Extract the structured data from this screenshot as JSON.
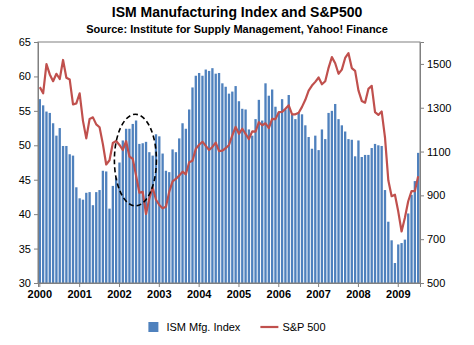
{
  "chart_data": {
    "type": "bar",
    "title": "ISM Manufacturing Index and S&P500",
    "subtitle": "Source: Institute for Supply Management, Yahoo! Finance",
    "categories": [
      "2000",
      null,
      null,
      null,
      null,
      null,
      null,
      null,
      null,
      null,
      null,
      null,
      "2001",
      null,
      null,
      null,
      null,
      null,
      null,
      null,
      null,
      null,
      null,
      null,
      "2002",
      null,
      null,
      null,
      null,
      null,
      null,
      null,
      null,
      null,
      null,
      null,
      "2003",
      null,
      null,
      null,
      null,
      null,
      null,
      null,
      null,
      null,
      null,
      null,
      "2004",
      null,
      null,
      null,
      null,
      null,
      null,
      null,
      null,
      null,
      null,
      null,
      "2005",
      null,
      null,
      null,
      null,
      null,
      null,
      null,
      null,
      null,
      null,
      null,
      "2006",
      null,
      null,
      null,
      null,
      null,
      null,
      null,
      null,
      null,
      null,
      null,
      "2007",
      null,
      null,
      null,
      null,
      null,
      null,
      null,
      null,
      null,
      null,
      null,
      "2008",
      null,
      null,
      null,
      null,
      null,
      null,
      null,
      null,
      null,
      null,
      null,
      "2009",
      null,
      null,
      null,
      null,
      null,
      null
    ],
    "series": [
      {
        "name": "ISM Mfg. Index",
        "type": "bar",
        "color": "#4f81bd",
        "values": [
          56.7,
          55.8,
          54.9,
          54.7,
          53.2,
          51.4,
          52.5,
          49.9,
          49.9,
          48.7,
          48.5,
          43.9,
          42.3,
          42.1,
          43.1,
          43.2,
          41.3,
          43.2,
          43.5,
          46.3,
          46.2,
          40.8,
          44.1,
          45.3,
          47.5,
          50.7,
          52.4,
          52.4,
          53.1,
          53.6,
          50.2,
          50.3,
          50.5,
          49.0,
          48.5,
          51.6,
          51.3,
          48.8,
          46.3,
          46.1,
          49.4,
          49.0,
          51.0,
          53.2,
          52.4,
          55.2,
          58.4,
          60.1,
          60.5,
          60.1,
          61.0,
          60.8,
          61.2,
          60.4,
          60.5,
          59.0,
          58.5,
          57.5,
          57.8,
          58.6,
          56.4,
          55.3,
          55.2,
          52.3,
          51.4,
          53.8,
          56.6,
          53.6,
          59.0,
          57.2,
          58.1,
          55.6,
          54.8,
          56.7,
          55.2,
          57.3,
          54.4,
          53.8,
          54.7,
          54.5,
          52.9,
          51.2,
          49.5,
          51.4,
          49.3,
          52.3,
          50.9,
          54.7,
          55.0,
          56.0,
          53.8,
          52.9,
          52.0,
          50.9,
          50.8,
          48.4,
          50.7,
          48.3,
          48.6,
          48.6,
          49.6,
          50.2,
          50.0,
          49.9,
          43.5,
          38.9,
          36.2,
          32.9,
          35.6,
          35.8,
          36.3,
          40.1,
          42.8,
          44.8,
          48.9
        ]
      },
      {
        "name": "S&P 500",
        "type": "line",
        "color": "#c0504d",
        "axis": "y2",
        "values": [
          1394,
          1366,
          1499,
          1452,
          1421,
          1455,
          1431,
          1518,
          1437,
          1429,
          1315,
          1320,
          1366,
          1240,
          1160,
          1249,
          1256,
          1224,
          1211,
          1134,
          1041,
          1060,
          1139,
          1148,
          1130,
          1107,
          1147,
          1077,
          1067,
          990,
          912,
          916,
          815,
          886,
          936,
          880,
          856,
          841,
          848,
          917,
          964,
          975,
          990,
          1008,
          996,
          1051,
          1058,
          1112,
          1131,
          1145,
          1126,
          1107,
          1121,
          1141,
          1102,
          1104,
          1115,
          1130,
          1174,
          1212,
          1181,
          1204,
          1181,
          1157,
          1192,
          1191,
          1234,
          1220,
          1229,
          1207,
          1249,
          1248,
          1280,
          1281,
          1295,
          1311,
          1270,
          1270,
          1277,
          1304,
          1336,
          1378,
          1401,
          1418,
          1438,
          1407,
          1421,
          1482,
          1531,
          1503,
          1455,
          1474,
          1527,
          1549,
          1481,
          1468,
          1379,
          1331,
          1323,
          1386,
          1400,
          1280,
          1267,
          1283,
          1165,
          969,
          896,
          903,
          826,
          735,
          798,
          873,
          919,
          919,
          987
        ]
      }
    ],
    "ylim": [
      30,
      65
    ],
    "yticks": [
      30,
      35,
      40,
      45,
      50,
      55,
      60,
      65
    ],
    "y2lim": [
      500,
      1600
    ],
    "y2ticks": [
      500,
      700,
      900,
      1100,
      1300,
      1500
    ],
    "grid": false,
    "legend": "bottom"
  }
}
